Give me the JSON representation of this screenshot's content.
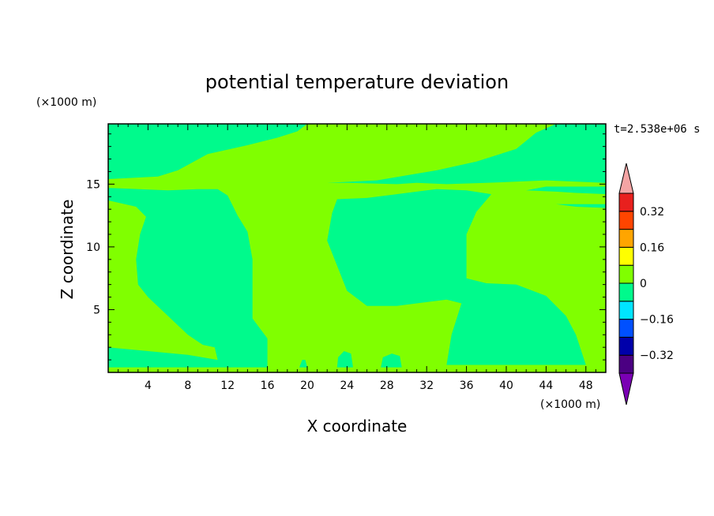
{
  "chart_data": {
    "type": "heatmap",
    "title": "potential temperature deviation",
    "xlabel": "X coordinate",
    "ylabel": "Z coordinate",
    "x_unit": "(×1000 m)",
    "y_unit": "(×1000 m)",
    "time_label": "t=2.538e+06 s",
    "xlim": [
      0,
      50
    ],
    "ylim": [
      0,
      19.8
    ],
    "x_ticks": [
      4,
      8,
      12,
      16,
      20,
      24,
      28,
      32,
      36,
      40,
      44,
      48
    ],
    "y_ticks": [
      5,
      10,
      15
    ],
    "x_tick_labels": [
      "4",
      "8",
      "12",
      "16",
      "20",
      "24",
      "28",
      "32",
      "36",
      "40",
      "44",
      "48"
    ],
    "y_tick_labels": [
      "5",
      "10",
      "15"
    ],
    "colorbar": {
      "levels": [
        -0.4,
        -0.32,
        -0.24,
        -0.16,
        -0.08,
        0,
        0.08,
        0.16,
        0.24,
        0.32,
        0.4
      ],
      "tick_values": [
        -0.32,
        -0.16,
        0,
        0.16,
        0.32
      ],
      "tick_labels": [
        "−0.32",
        "−0.16",
        "0",
        "0.16",
        "0.32"
      ],
      "colors": [
        "#4b0082",
        "#0000aa",
        "#0050ff",
        "#00e5ff",
        "#00fa8c",
        "#80ff00",
        "#ffff00",
        "#ffa500",
        "#ff4500",
        "#e8201e"
      ],
      "under_color": "#7a00b4",
      "over_color": "#f4a4a4",
      "extend": "both"
    },
    "regions": [
      {
        "name": "negative-region-upper-band",
        "value_range": [
          -0.08,
          0
        ],
        "boundary": [
          [
            0,
            19.8
          ],
          [
            20,
            19.8
          ],
          [
            19,
            19.2
          ],
          [
            17,
            18.7
          ],
          [
            14,
            18.1
          ],
          [
            10,
            17.4
          ],
          [
            7,
            16.1
          ],
          [
            5,
            15.6
          ],
          [
            0,
            15.4
          ]
        ]
      },
      {
        "name": "negative-region-upper-right",
        "value_range": [
          -0.08,
          0
        ],
        "boundary": [
          [
            45,
            19.8
          ],
          [
            50,
            19.8
          ],
          [
            50,
            15.1
          ],
          [
            44,
            15.3
          ],
          [
            38,
            15.1
          ],
          [
            34,
            15.0
          ],
          [
            31,
            15.1
          ],
          [
            29,
            15.0
          ],
          [
            24,
            15.1
          ],
          [
            22,
            15.1
          ],
          [
            27,
            15.3
          ],
          [
            33,
            16.1
          ],
          [
            37,
            16.8
          ],
          [
            41,
            17.8
          ],
          [
            43,
            19.1
          ]
        ]
      },
      {
        "name": "negative-region-left-plume",
        "value_range": [
          -0.08,
          0
        ],
        "boundary": [
          [
            0,
            14.7
          ],
          [
            6,
            14.5
          ],
          [
            9,
            14.6
          ],
          [
            11,
            14.6
          ],
          [
            12,
            14.1
          ],
          [
            13,
            12.5
          ],
          [
            14,
            11.2
          ],
          [
            14.5,
            9.0
          ],
          [
            14.5,
            4.3
          ],
          [
            16,
            2.7
          ],
          [
            16,
            0.4
          ],
          [
            0,
            0.4
          ],
          [
            0,
            2.0
          ],
          [
            8,
            1.4
          ],
          [
            11,
            1.0
          ],
          [
            10.7,
            2.0
          ],
          [
            9.5,
            2.2
          ],
          [
            8,
            3.0
          ],
          [
            6,
            4.5
          ],
          [
            4,
            6.0
          ],
          [
            3,
            7.0
          ],
          [
            2.8,
            9.0
          ],
          [
            3.2,
            11.0
          ],
          [
            3.8,
            12.4
          ],
          [
            2.8,
            13.2
          ],
          [
            0,
            13.7
          ]
        ]
      },
      {
        "name": "negative-region-center-plume",
        "value_range": [
          -0.08,
          0
        ],
        "boundary": [
          [
            23,
            13.8
          ],
          [
            26,
            13.9
          ],
          [
            29,
            14.2
          ],
          [
            32,
            14.5
          ],
          [
            33,
            14.6
          ],
          [
            36,
            14.5
          ],
          [
            38.5,
            14.2
          ],
          [
            37,
            12.8
          ],
          [
            36,
            11.0
          ],
          [
            36,
            7.5
          ],
          [
            38,
            7.1
          ],
          [
            41,
            7.0
          ],
          [
            44,
            6.1
          ],
          [
            46,
            4.5
          ],
          [
            47,
            3.0
          ],
          [
            48,
            0.6
          ],
          [
            34,
            0.6
          ],
          [
            34.5,
            3.0
          ],
          [
            35.5,
            5.5
          ],
          [
            34,
            5.8
          ],
          [
            29,
            5.3
          ],
          [
            26,
            5.3
          ],
          [
            24,
            6.5
          ],
          [
            23,
            8.5
          ],
          [
            22,
            10.5
          ],
          [
            22.5,
            12.7
          ]
        ]
      },
      {
        "name": "negative-region-right-band",
        "value_range": [
          -0.08,
          0
        ],
        "boundary": [
          [
            44,
            14.8
          ],
          [
            50,
            14.8
          ],
          [
            50,
            14.2
          ],
          [
            47,
            14.3
          ],
          [
            45,
            14.4
          ],
          [
            42,
            14.5
          ]
        ]
      },
      {
        "name": "negative-region-right-band-lower",
        "value_range": [
          -0.08,
          0
        ],
        "boundary": [
          [
            45,
            13.4
          ],
          [
            50,
            13.4
          ],
          [
            50,
            13.1
          ],
          [
            47,
            13.2
          ]
        ]
      },
      {
        "name": "negative-region-bump-12",
        "value_range": [
          -0.08,
          0
        ],
        "boundary": [
          [
            11.5,
            1.2
          ],
          [
            14.3,
            1.2
          ],
          [
            14.3,
            1.6
          ],
          [
            13.7,
            1.8
          ],
          [
            12.0,
            1.9
          ],
          [
            11.0,
            1.6
          ]
        ]
      },
      {
        "name": "negative-region-bump-19",
        "value_range": [
          -0.08,
          0
        ],
        "boundary": [
          [
            19.2,
            0.4
          ],
          [
            20.0,
            0.4
          ],
          [
            19.8,
            1.0
          ],
          [
            19.5,
            1.0
          ]
        ]
      },
      {
        "name": "negative-region-bump-24",
        "value_range": [
          -0.08,
          0
        ],
        "boundary": [
          [
            23.0,
            0.4
          ],
          [
            24.6,
            0.4
          ],
          [
            24.4,
            1.5
          ],
          [
            23.7,
            1.7
          ],
          [
            23.1,
            1.2
          ]
        ]
      },
      {
        "name": "negative-region-bump-28",
        "value_range": [
          -0.08,
          0
        ],
        "boundary": [
          [
            27.4,
            0.4
          ],
          [
            29.5,
            0.4
          ],
          [
            29.3,
            1.3
          ],
          [
            28.5,
            1.5
          ],
          [
            27.6,
            1.2
          ]
        ]
      }
    ]
  }
}
